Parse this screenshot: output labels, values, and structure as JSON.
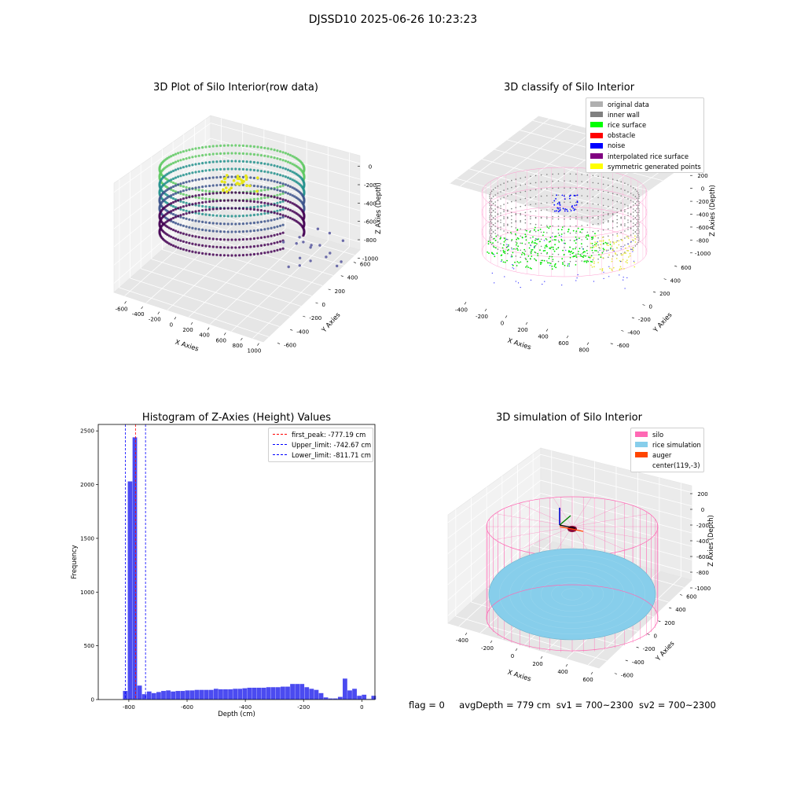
{
  "suptitle": "DJSSD10 2025-06-26 10:23:23",
  "footer": {
    "flag": "flag = 0",
    "avgDepth": "avgDepth = 779 cm",
    "sv1": "sv1 = 700~2300",
    "sv2": "sv2 = 700~2300"
  },
  "colors": {
    "histogram_bar": "#4b4bf0",
    "first_peak_line": "#ff0000",
    "limit_lines": "#0000ff",
    "silo_wire": "#ff69b4",
    "rice_sim": "#87ceeb",
    "auger": "#ff4500"
  },
  "chart_data": [
    {
      "type": "scatter",
      "title": "3D Plot of Silo Interior(row data)",
      "projection": "3d",
      "xlabel": "X Axies",
      "ylabel": "Y Axies",
      "zlabel": "Z Axies (Depth)",
      "x_ticks": [
        "-600",
        "-400",
        "-200",
        "0",
        "200",
        "400",
        "600",
        "800",
        "1000"
      ],
      "y_ticks": [
        "-600",
        "-400",
        "-200",
        "0",
        "200",
        "400",
        "600"
      ],
      "z_ticks": [
        "0",
        "-200",
        "-400",
        "-600",
        "-800",
        "-1000"
      ],
      "colormap": "viridis",
      "grid": true
    },
    {
      "type": "scatter",
      "title": "3D classify of Silo Interior",
      "projection": "3d",
      "xlabel": "X Axies",
      "ylabel": "Y Axies",
      "zlabel": "Z Axies (Depth)",
      "x_ticks": [
        "-400",
        "-200",
        "0",
        "200",
        "400",
        "600",
        "800"
      ],
      "y_ticks": [
        "-600",
        "-400",
        "-200",
        "0",
        "200",
        "400",
        "600"
      ],
      "z_ticks": [
        "200",
        "0",
        "-200",
        "-400",
        "-600",
        "-800",
        "-1000"
      ],
      "legend": [
        {
          "label": "original data",
          "color": "#b0b0b0"
        },
        {
          "label": "inner wall",
          "color": "#808080"
        },
        {
          "label": "rice surface",
          "color": "#00ff00"
        },
        {
          "label": "obstacle",
          "color": "#ff0000"
        },
        {
          "label": "noise",
          "color": "#0000ff"
        },
        {
          "label": "interpolated rice surface",
          "color": "#800080"
        },
        {
          "label": "symmetric generated points",
          "color": "#ffff00"
        }
      ],
      "legend_loc": "upper right",
      "grid": true
    },
    {
      "type": "bar",
      "title": "Histogram of Z-Axies (Height) Values",
      "xlabel": "Depth (cm)",
      "ylabel": "Frequency",
      "xlim": [
        -905,
        45
      ],
      "ylim": [
        0,
        2560
      ],
      "x_ticks": [
        -800,
        -600,
        -400,
        -200,
        0
      ],
      "y_ticks": [
        0,
        500,
        1000,
        1500,
        2000,
        2500
      ],
      "bin_start": -820,
      "bin_width": 16.4,
      "values": [
        80,
        2030,
        2440,
        130,
        50,
        75,
        60,
        70,
        80,
        85,
        75,
        80,
        80,
        85,
        85,
        90,
        90,
        90,
        90,
        100,
        95,
        95,
        95,
        100,
        100,
        105,
        110,
        110,
        110,
        110,
        115,
        115,
        115,
        120,
        120,
        145,
        145,
        145,
        115,
        100,
        90,
        60,
        20,
        10,
        10,
        25,
        195,
        85,
        100,
        35,
        45,
        5,
        35
      ],
      "vlines": [
        {
          "label": "first_peak: -777.19 cm",
          "x": -777.19,
          "color": "#ff0000"
        },
        {
          "label": "Upper_limit: -742.67 cm",
          "x": -742.67,
          "color": "#0000ff"
        },
        {
          "label": "Lower_limit: -811.71 cm",
          "x": -811.71,
          "color": "#0000ff"
        }
      ],
      "legend_loc": "upper right",
      "grid": false
    },
    {
      "type": "scatter",
      "title": "3D simulation of Silo Interior",
      "projection": "3d",
      "xlabel": "X Axies",
      "ylabel": "Y Axies",
      "zlabel": "Z Axies (Depth)",
      "x_ticks": [
        "-400",
        "-200",
        "0",
        "200",
        "400",
        "600"
      ],
      "y_ticks": [
        "-600",
        "-400",
        "-200",
        "0",
        "200",
        "400",
        "600"
      ],
      "z_ticks": [
        "200",
        "0",
        "-200",
        "-400",
        "-600",
        "-800",
        "-1000"
      ],
      "legend": [
        {
          "label": "silo",
          "color": "#ff69b4"
        },
        {
          "label": "rice simulation",
          "color": "#87ceeb"
        },
        {
          "label": "auger",
          "color": "#ff4500"
        },
        {
          "label": "center(119,-3)",
          "color": ""
        }
      ],
      "legend_loc": "upper right",
      "grid": true
    }
  ]
}
